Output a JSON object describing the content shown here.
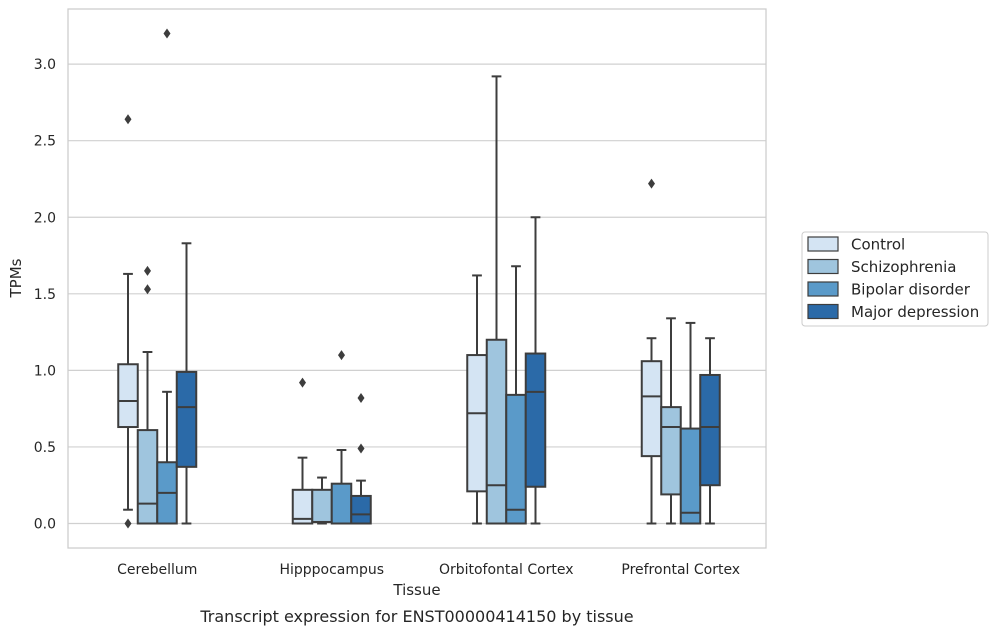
{
  "chart_data": {
    "type": "boxplot",
    "caption": "Transcript expression for ENST00000414150 by tissue",
    "xlabel": "Tissue",
    "ylabel": "TPMs",
    "ylim": [
      -0.16,
      3.36
    ],
    "yticks": [
      0.0,
      0.5,
      1.0,
      1.5,
      2.0,
      2.5,
      3.0
    ],
    "ytick_labels": [
      "0.0",
      "0.5",
      "1.0",
      "1.5",
      "2.0",
      "2.5",
      "3.0"
    ],
    "grid": "horizontal",
    "legend_position": "outside-right",
    "categories": [
      "Cerebellum",
      "Hipppocampus",
      "Orbitofontal Cortex",
      "Prefrontal Cortex"
    ],
    "series": [
      {
        "name": "Control",
        "color": "#d4e4f3",
        "boxes": [
          {
            "q1": 0.63,
            "median": 0.8,
            "q3": 1.04,
            "whislo": 0.09,
            "whishi": 1.63,
            "fliers": [
              2.64,
              0.0
            ]
          },
          {
            "q1": 0.0,
            "median": 0.03,
            "q3": 0.22,
            "whislo": 0.0,
            "whishi": 0.43,
            "fliers": [
              0.92
            ]
          },
          {
            "q1": 0.21,
            "median": 0.72,
            "q3": 1.1,
            "whislo": 0.0,
            "whishi": 1.62,
            "fliers": []
          },
          {
            "q1": 0.44,
            "median": 0.83,
            "q3": 1.06,
            "whislo": 0.0,
            "whishi": 1.21,
            "fliers": [
              2.22
            ]
          }
        ]
      },
      {
        "name": "Schizophrenia",
        "color": "#9fc5de",
        "boxes": [
          {
            "q1": 0.0,
            "median": 0.13,
            "q3": 0.61,
            "whislo": 0.0,
            "whishi": 1.12,
            "fliers": [
              1.53,
              1.65
            ]
          },
          {
            "q1": 0.01,
            "median": 0.01,
            "q3": 0.22,
            "whislo": 0.0,
            "whishi": 0.3,
            "fliers": []
          },
          {
            "q1": 0.0,
            "median": 0.25,
            "q3": 1.2,
            "whislo": 0.0,
            "whishi": 2.92,
            "fliers": []
          },
          {
            "q1": 0.19,
            "median": 0.63,
            "q3": 0.76,
            "whislo": 0.0,
            "whishi": 1.34,
            "fliers": []
          }
        ]
      },
      {
        "name": "Bipolar disorder",
        "color": "#5a9ac9",
        "boxes": [
          {
            "q1": 0.0,
            "median": 0.2,
            "q3": 0.4,
            "whislo": 0.0,
            "whishi": 0.86,
            "fliers": [
              3.2
            ]
          },
          {
            "q1": 0.0,
            "median": 0.0,
            "q3": 0.26,
            "whislo": 0.0,
            "whishi": 0.48,
            "fliers": [
              1.1
            ]
          },
          {
            "q1": 0.0,
            "median": 0.09,
            "q3": 0.84,
            "whislo": 0.0,
            "whishi": 1.68,
            "fliers": []
          },
          {
            "q1": 0.0,
            "median": 0.07,
            "q3": 0.62,
            "whislo": 0.0,
            "whishi": 1.31,
            "fliers": []
          }
        ]
      },
      {
        "name": "Major depression",
        "color": "#2b6aa8",
        "boxes": [
          {
            "q1": 0.37,
            "median": 0.76,
            "q3": 0.99,
            "whislo": 0.0,
            "whishi": 1.83,
            "fliers": []
          },
          {
            "q1": 0.0,
            "median": 0.06,
            "q3": 0.18,
            "whislo": 0.0,
            "whishi": 0.28,
            "fliers": [
              0.49,
              0.82
            ]
          },
          {
            "q1": 0.24,
            "median": 0.86,
            "q3": 1.11,
            "whislo": 0.0,
            "whishi": 2.0,
            "fliers": []
          },
          {
            "q1": 0.25,
            "median": 0.63,
            "q3": 0.97,
            "whislo": 0.0,
            "whishi": 1.21,
            "fliers": []
          }
        ]
      }
    ]
  }
}
